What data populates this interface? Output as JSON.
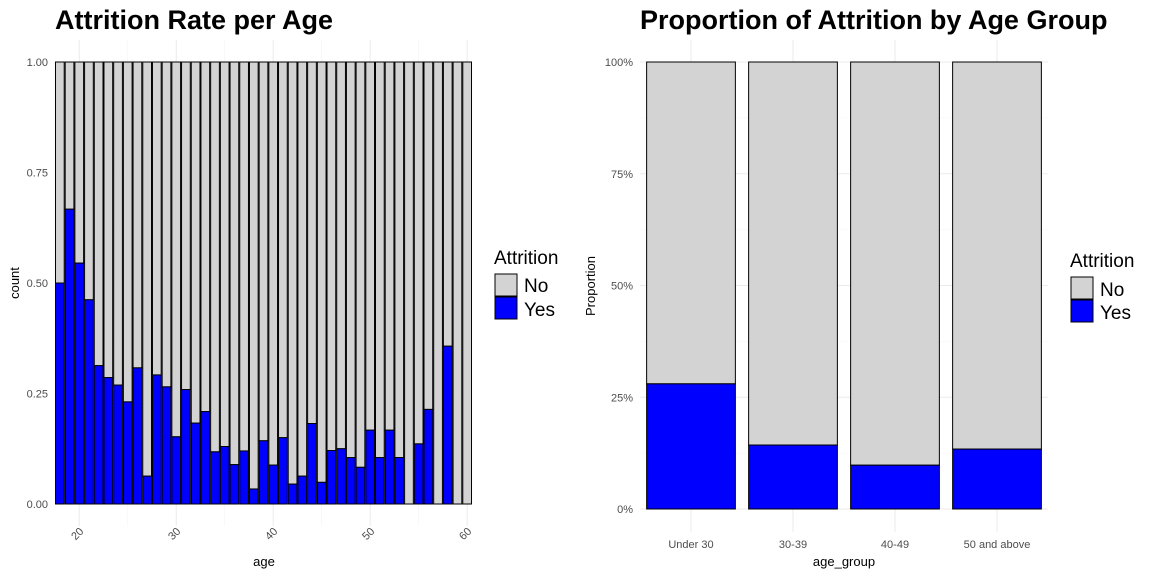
{
  "colors": {
    "No": "#d3d3d3",
    "Yes": "#0000ff"
  },
  "chart_data": [
    {
      "type": "bar",
      "stacked": "fill",
      "title": "Attrition Rate per Age",
      "xlabel": "age",
      "ylabel": "count",
      "xlim": [
        17.5,
        60.5
      ],
      "ylim": [
        0,
        1
      ],
      "x_ticks": [
        20,
        30,
        40,
        50,
        60
      ],
      "x_tick_labels": [
        "20",
        "30",
        "40",
        "50",
        "60"
      ],
      "y_ticks": [
        0,
        0.25,
        0.5,
        0.75,
        1
      ],
      "y_tick_labels": [
        "0.00",
        "0.25",
        "0.50",
        "0.75",
        "1.00"
      ],
      "grid": true,
      "legend": {
        "title": "Attrition",
        "position": "right",
        "entries": [
          "No",
          "Yes"
        ]
      },
      "ages": [
        18,
        19,
        20,
        21,
        22,
        23,
        24,
        25,
        26,
        27,
        28,
        29,
        30,
        31,
        32,
        33,
        34,
        35,
        36,
        37,
        38,
        39,
        40,
        41,
        42,
        43,
        44,
        45,
        46,
        47,
        48,
        49,
        50,
        51,
        52,
        53,
        54,
        55,
        56,
        57,
        58,
        59,
        60
      ],
      "yes_proportion": [
        0.5,
        0.667,
        0.545,
        0.462,
        0.313,
        0.286,
        0.269,
        0.231,
        0.308,
        0.063,
        0.292,
        0.265,
        0.152,
        0.259,
        0.183,
        0.209,
        0.118,
        0.13,
        0.089,
        0.12,
        0.034,
        0.143,
        0.088,
        0.15,
        0.045,
        0.063,
        0.182,
        0.049,
        0.121,
        0.125,
        0.105,
        0.083,
        0.167,
        0.105,
        0.167,
        0.105,
        0,
        0.136,
        0.214,
        0,
        0.357,
        0,
        0
      ]
    },
    {
      "type": "bar",
      "stacked": "fill",
      "title": "Proportion of Attrition by Age Group",
      "xlabel": "age_group",
      "ylabel": "Proportion",
      "categories": [
        "Under 30",
        "30-39",
        "40-49",
        "50 and above"
      ],
      "ylim": [
        0,
        1
      ],
      "y_ticks": [
        0,
        0.25,
        0.5,
        0.75,
        1
      ],
      "y_tick_labels": [
        "0%",
        "25%",
        "50%",
        "75%",
        "100%"
      ],
      "grid": true,
      "legend": {
        "title": "Attrition",
        "position": "right",
        "entries": [
          "No",
          "Yes"
        ]
      },
      "yes_proportion": [
        0.28,
        0.143,
        0.098,
        0.134
      ]
    }
  ]
}
